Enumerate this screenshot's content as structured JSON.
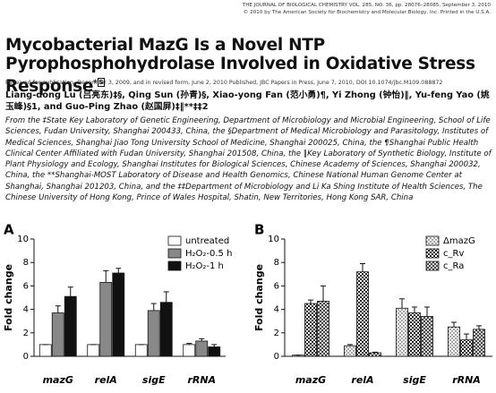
{
  "header": {
    "journal_line": "THE JOURNAL OF BIOLOGICAL CHEMISTRY VOL. 285, NO. 36, pp. 28076–28085, September 3, 2010",
    "copyright_line": "© 2010 by The American Society for Biochemistry and Molecular Biology, Inc.   Printed in the U.S.A."
  },
  "article": {
    "title": "Mycobacterial MazG Is a Novel NTP Pyrophosphohydrolase Involved in Oxidative Stress Response",
    "title_superscript": "*",
    "title_supplement": "S",
    "received": "Received for publication, December 3, 2009, and in revised form, June 2, 2010 Published, JBC Papers in Press, June 7, 2010, DOI 10.1074/jbc.M109.088872",
    "authors": "Liang-dong Lu (吕亮东)‡§, Qing Sun (孙青)§, Xiao-yong Fan (范小勇)¶, Yi Zhong (钟怡)‖, Yu-feng Yao (姚玉峰)§1, and Guo-Ping Zhao (赵国屏)‡‖**‡‡2",
    "affiliations": "From the ‡State Key Laboratory of Genetic Engineering, Department of Microbiology and Microbial Engineering, School of Life Sciences, Fudan University, Shanghai 200433, China, the §Department of Medical Microbiology and Parasitology, Institutes of Medical Sciences, Shanghai Jiao Tong University School of Medicine, Shanghai 200025, China, the ¶Shanghai Public Health Clinical Center Affiliated with Fudan University, Shanghai 201508, China, the ‖Key Laboratory of Synthetic Biology, Institute of Plant Physiology and Ecology, Shanghai Institutes for Biological Sciences, Chinese Academy of Sciences, Shanghai 200032, China, the **Shanghai-MOST Laboratory of Disease and Health Genomics, Chinese National Human Genome Center at Shanghai, Shanghai 201203, China, and the ‡‡Department of Microbiology and Li Ka Shing Institute of Health Sciences, The Chinese University of Hong Kong, Prince of Wales Hospital, Shatin, New Territories, Hong Kong SAR, China"
  },
  "chart_data": [
    {
      "type": "bar",
      "title": "A",
      "y_label": "Fold change",
      "categories": [
        "mazG",
        "relA",
        "sigE",
        "rRNA"
      ],
      "ylim": [
        0,
        10
      ],
      "yticks": [
        0,
        2,
        4,
        6,
        8,
        10
      ],
      "series": [
        {
          "name": "untreated",
          "color": "#ffffff",
          "pattern": "solid",
          "values": [
            1,
            1,
            1,
            1
          ],
          "errors": [
            0,
            0,
            0,
            0.1
          ]
        },
        {
          "name": "H₂O₂-0.5 h",
          "color": "#888888",
          "pattern": "solid",
          "values": [
            3.7,
            6.3,
            3.9,
            1.3
          ],
          "errors": [
            0.6,
            1.0,
            0.6,
            0.2
          ]
        },
        {
          "name": "H₂O₂-1 h",
          "color": "#111111",
          "pattern": "solid",
          "values": [
            5.1,
            7.1,
            4.6,
            0.8
          ],
          "errors": [
            0.8,
            0.4,
            0.9,
            0.2
          ]
        }
      ]
    },
    {
      "type": "bar",
      "title": "B",
      "y_label": "Fold change",
      "categories": [
        "mazG",
        "relA",
        "sigE",
        "rRNA"
      ],
      "ylim": [
        0,
        10
      ],
      "yticks": [
        0,
        2,
        4,
        6,
        8,
        10
      ],
      "series": [
        {
          "name": "ΔmazG",
          "color": "#ffffff",
          "pattern": "dots",
          "values": [
            0.1,
            0.9,
            4.1,
            2.5
          ],
          "errors": [
            0,
            0.1,
            0.8,
            0.4
          ]
        },
        {
          "name": "c_Rv",
          "color": "#ffffff",
          "pattern": "checker",
          "values": [
            4.5,
            7.2,
            3.7,
            1.4
          ],
          "errors": [
            0.3,
            0.7,
            0.5,
            0.5
          ]
        },
        {
          "name": "c_Ra",
          "color": "#ffffff",
          "pattern": "cross",
          "values": [
            4.7,
            0.3,
            3.4,
            2.3
          ],
          "errors": [
            1.3,
            0.05,
            0.8,
            0.3
          ]
        }
      ]
    }
  ]
}
